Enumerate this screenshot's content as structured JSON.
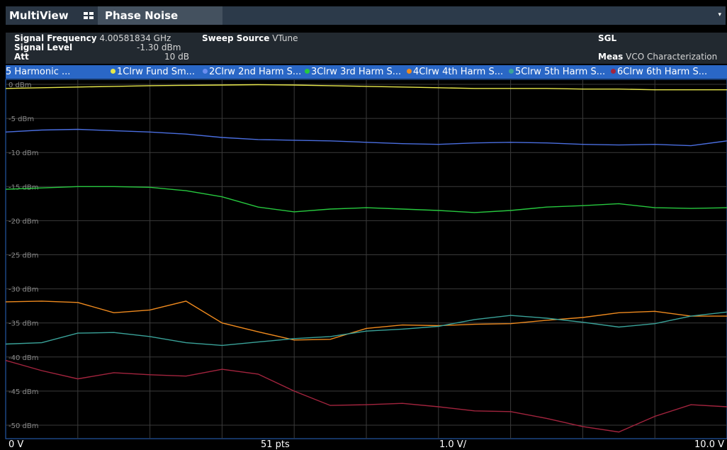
{
  "tabs": {
    "multiview": "MultiView",
    "phase_noise": "Phase Noise",
    "dropdown": "▾"
  },
  "info": {
    "signal_frequency_label": "Signal Frequency",
    "signal_frequency_value": "4.00581834 GHz",
    "sweep_source_label": "Sweep Source",
    "sweep_source_value": "VTune",
    "sgl": "SGL",
    "signal_level_label": "Signal Level",
    "signal_level_value": "-1.30 dBm",
    "att_label": "Att",
    "att_value": "10 dB",
    "meas_label": "Meas",
    "meas_value": "VCO Characterization"
  },
  "legend": {
    "window_title": "5 Harmonic ...",
    "items": [
      {
        "label": "1Clrw Fund Sm...",
        "color": "#e8e84a"
      },
      {
        "label": "2Clrw 2nd Harm S...",
        "color": "#6a8ef0"
      },
      {
        "label": "3Clrw 3rd Harm S...",
        "color": "#27c93f"
      },
      {
        "label": "4Clrw 4th Harm S...",
        "color": "#ef8a1e"
      },
      {
        "label": "5Clrw 5th Harm S...",
        "color": "#3aa39a"
      },
      {
        "label": "6Clrw 6th Harm S...",
        "color": "#a3243e"
      }
    ]
  },
  "bottom": {
    "left": "0 V",
    "center": "51 pts",
    "div": "1.0 V/",
    "right": "10.0 V"
  },
  "chart_data": {
    "type": "line",
    "xlim": [
      0,
      10
    ],
    "ylim": [
      -51,
      0
    ],
    "yticks": [
      0,
      -5,
      -10,
      -15,
      -20,
      -25,
      -30,
      -35,
      -40,
      -45,
      -50
    ],
    "ytick_labels": [
      "0 dBm",
      "-5 dBm",
      "-10 dBm",
      "-15 dBm",
      "-20 dBm",
      "-25 dBm",
      "-30 dBm",
      "-35 dBm",
      "-40 dBm",
      "-45 dBm",
      "-50 dBm"
    ],
    "xlabel_left": "0 V",
    "xlabel_right": "10.0 V",
    "points": 51,
    "grid": true,
    "x": [
      0,
      0.5,
      1,
      1.5,
      2,
      2.5,
      3,
      3.5,
      4,
      4.5,
      5,
      5.5,
      6,
      6.5,
      7,
      7.5,
      8,
      8.5,
      9,
      9.5,
      10
    ],
    "series": [
      {
        "name": "1Clrw Fund Sm...",
        "color": "#e8e84a",
        "values": [
          -0.6,
          -0.5,
          -0.4,
          -0.3,
          -0.2,
          -0.15,
          -0.1,
          -0.05,
          -0.1,
          -0.2,
          -0.3,
          -0.4,
          -0.5,
          -0.6,
          -0.6,
          -0.6,
          -0.7,
          -0.7,
          -0.8,
          -0.8,
          -0.8
        ]
      },
      {
        "name": "2Clrw 2nd Harm S...",
        "color": "#4a6ee0",
        "values": [
          -7.0,
          -6.7,
          -6.6,
          -6.8,
          -7.0,
          -7.3,
          -7.8,
          -8.1,
          -8.2,
          -8.3,
          -8.5,
          -8.7,
          -8.8,
          -8.6,
          -8.5,
          -8.6,
          -8.8,
          -8.9,
          -8.8,
          -9.0,
          -8.3
        ]
      },
      {
        "name": "3Clrw 3rd Harm S...",
        "color": "#27c93f",
        "values": [
          -15.4,
          -15.2,
          -15.0,
          -15.0,
          -15.1,
          -15.6,
          -16.5,
          -18.0,
          -18.7,
          -18.3,
          -18.1,
          -18.3,
          -18.5,
          -18.8,
          -18.5,
          -18.0,
          -17.8,
          -17.5,
          -18.1,
          -18.2,
          -18.1
        ]
      },
      {
        "name": "4Clrw 4th Harm S...",
        "color": "#ef8a1e",
        "values": [
          -31.9,
          -31.8,
          -32.0,
          -33.5,
          -33.1,
          -31.8,
          -35.0,
          -36.3,
          -37.5,
          -37.4,
          -35.8,
          -35.3,
          -35.4,
          -35.2,
          -35.1,
          -34.6,
          -34.2,
          -33.5,
          -33.3,
          -34.0,
          -34.0
        ]
      },
      {
        "name": "5Clrw 5th Harm S...",
        "color": "#3aa39a",
        "values": [
          -38.1,
          -37.9,
          -36.5,
          -36.4,
          -37.0,
          -37.9,
          -38.3,
          -37.8,
          -37.3,
          -37.0,
          -36.2,
          -35.9,
          -35.5,
          -34.5,
          -33.9,
          -34.3,
          -34.9,
          -35.6,
          -35.1,
          -34.0,
          -33.4
        ]
      },
      {
        "name": "6Clrw 6th Harm S...",
        "color": "#a3243e",
        "values": [
          -40.5,
          -42.0,
          -43.2,
          -42.3,
          -42.6,
          -42.8,
          -41.8,
          -42.5,
          -45.0,
          -47.1,
          -47.0,
          -46.8,
          -47.3,
          -47.9,
          -48.0,
          -49.0,
          -50.2,
          -51.0,
          -48.7,
          -47.0,
          -47.3
        ]
      }
    ]
  }
}
